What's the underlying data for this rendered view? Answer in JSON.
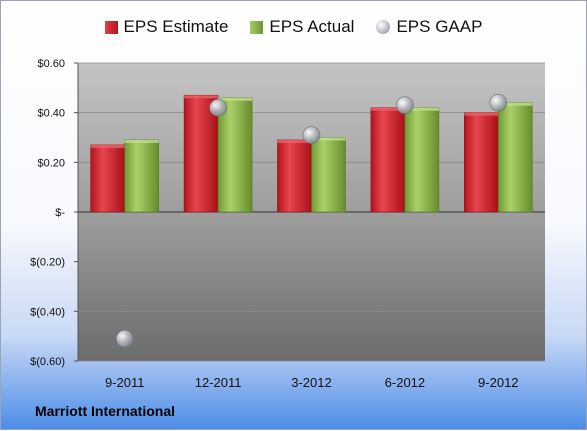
{
  "company": "Marriott International",
  "chart_data": {
    "type": "bar",
    "categories": [
      "9-2011",
      "12-2011",
      "3-2012",
      "6-2012",
      "9-2012"
    ],
    "series": [
      {
        "name": "EPS Estimate",
        "type": "bar",
        "color": "#cc2229",
        "values": [
          0.27,
          0.47,
          0.29,
          0.42,
          0.4
        ]
      },
      {
        "name": "EPS Actual",
        "type": "bar",
        "color": "#8cb748",
        "values": [
          0.29,
          0.46,
          0.3,
          0.42,
          0.44
        ]
      },
      {
        "name": "EPS GAAP",
        "type": "scatter",
        "color": "#a7acb4",
        "values": [
          -0.51,
          0.42,
          0.31,
          0.43,
          0.44
        ]
      }
    ],
    "yticks": [
      {
        "value": 0.6,
        "label": "$0.60"
      },
      {
        "value": 0.4,
        "label": "$0.40"
      },
      {
        "value": 0.2,
        "label": "$0.20"
      },
      {
        "value": 0.0,
        "label": "$-"
      },
      {
        "value": -0.2,
        "label": "$(0.20)"
      },
      {
        "value": -0.4,
        "label": "$(0.40)"
      },
      {
        "value": -0.6,
        "label": "$(0.60)"
      }
    ],
    "ylim": [
      -0.6,
      0.6
    ],
    "grid": true,
    "legend": "top"
  }
}
